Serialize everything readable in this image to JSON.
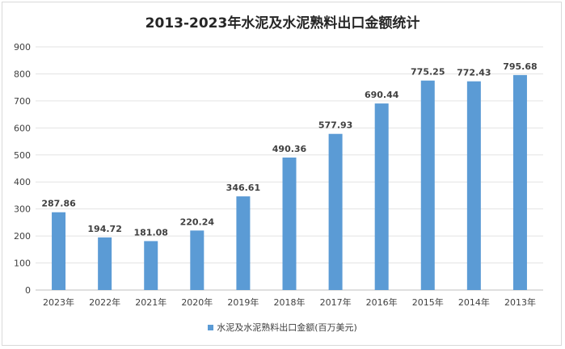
{
  "chart_data": {
    "type": "bar",
    "title": "2013-2023年水泥及水泥熟料出口金额统计",
    "categories": [
      "2023年",
      "2022年",
      "2021年",
      "2020年",
      "2019年",
      "2018年",
      "2017年",
      "2016年",
      "2015年",
      "2014年",
      "2013年"
    ],
    "series": [
      {
        "name": "水泥及水泥熟料出口金额(百万美元)",
        "values": [
          287.86,
          194.72,
          181.08,
          220.24,
          346.61,
          490.36,
          577.93,
          690.44,
          775.25,
          772.43,
          795.68
        ]
      }
    ],
    "ylim": [
      0,
      900
    ],
    "yticks": [
      0,
      100,
      200,
      300,
      400,
      500,
      600,
      700,
      800,
      900
    ],
    "grid": true,
    "legend": "bottom",
    "bar_color": "#5b9bd5"
  }
}
